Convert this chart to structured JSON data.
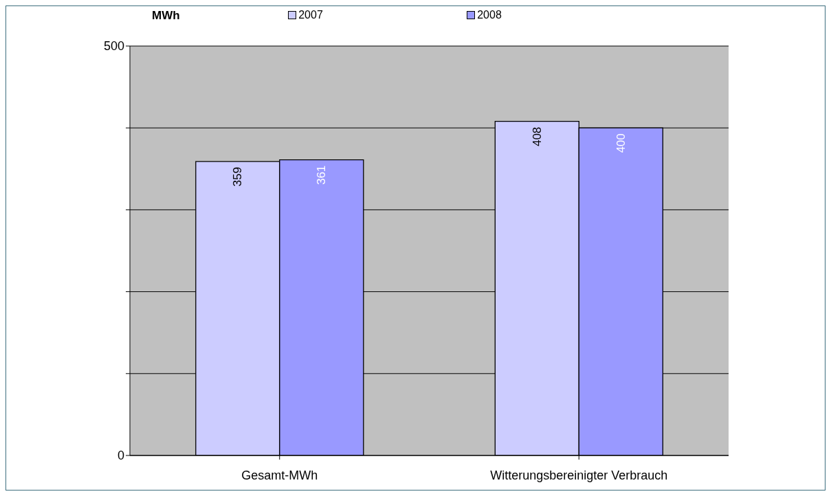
{
  "chart_data": {
    "type": "bar",
    "ylabel": "MWh",
    "categories": [
      "Gesamt-MWh",
      "Witterungsbereinigter Verbrauch"
    ],
    "series": [
      {
        "name": "2007",
        "color": "#ccccff",
        "values": [
          359,
          408
        ]
      },
      {
        "name": "2008",
        "color": "#9999ff",
        "values": [
          361,
          400
        ]
      }
    ],
    "ylim": [
      0,
      500
    ],
    "yticks": [
      0,
      {
        "value": 100,
        "label": null
      },
      {
        "value": 200,
        "label": null
      },
      {
        "value": 300,
        "label": null
      },
      {
        "value": 400,
        "label": null
      },
      500
    ],
    "grid": "y",
    "legend": "top",
    "data_labels": true
  }
}
